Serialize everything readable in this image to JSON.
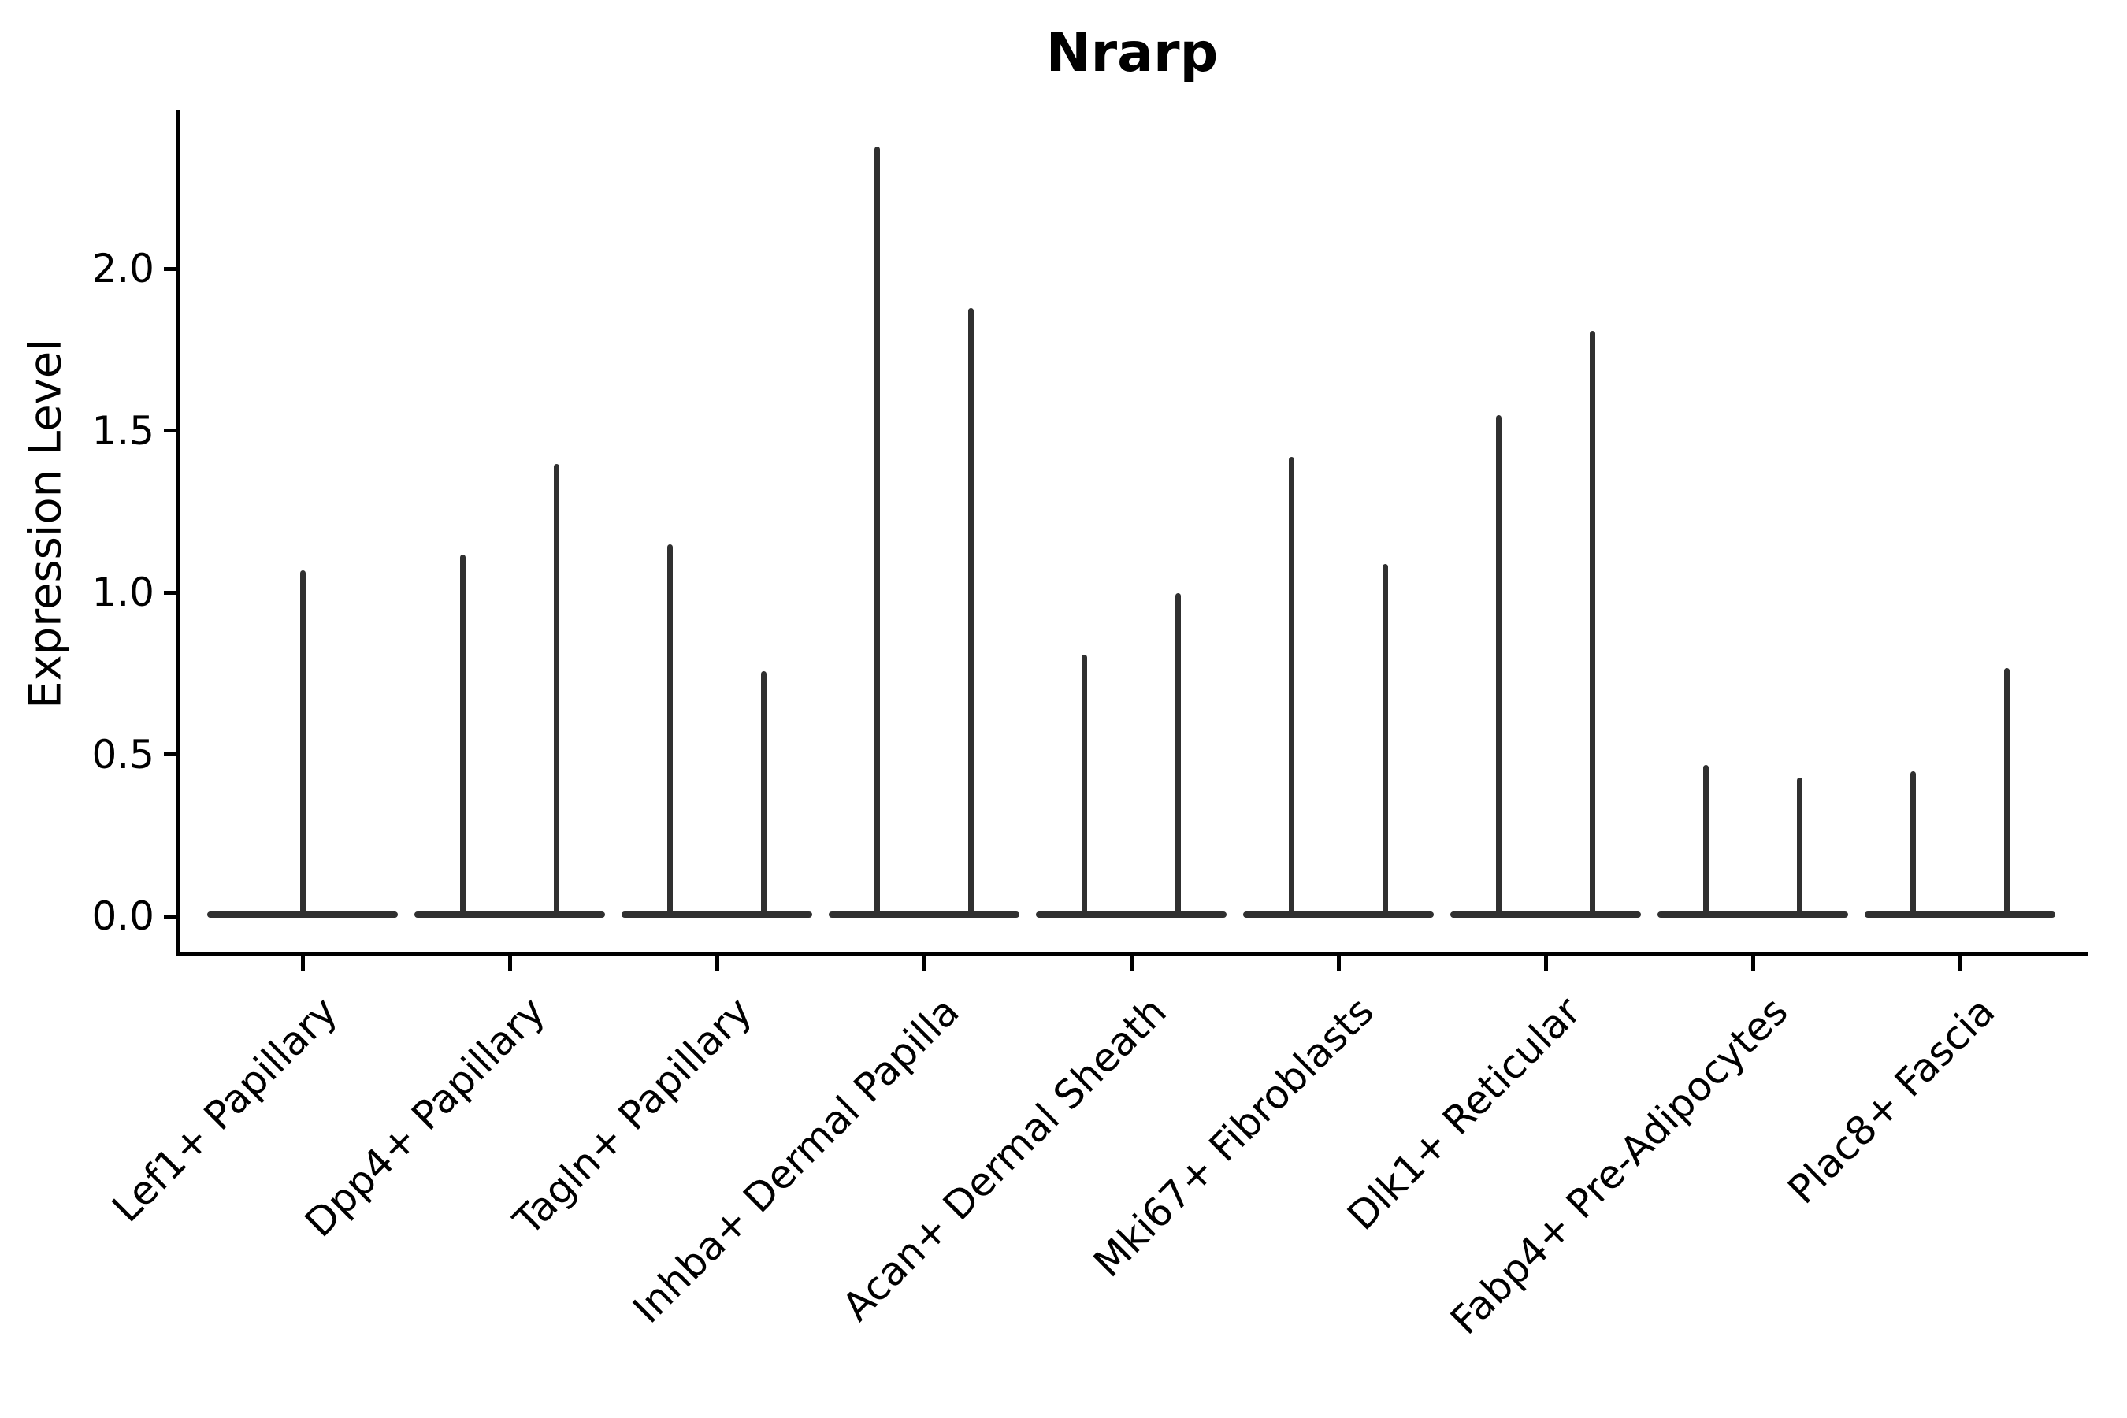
{
  "figure": {
    "title": "Nrarp",
    "background": "#ffffff"
  },
  "axes": {
    "ylabel": "Expression Level",
    "yticks": [
      {
        "label": "0.0",
        "value": 0.0
      },
      {
        "label": "0.5",
        "value": 0.5
      },
      {
        "label": "1.0",
        "value": 1.0
      },
      {
        "label": "1.5",
        "value": 1.5
      },
      {
        "label": "2.0",
        "value": 2.0
      }
    ]
  },
  "colors": {
    "violin": "#303030",
    "axis": "#000000",
    "text": "#000000"
  },
  "chart_data": {
    "type": "violin",
    "title": "Nrarp",
    "xlabel": "",
    "ylabel": "Expression Level",
    "ylim": [
      -0.12,
      2.49
    ],
    "ytick_values": [
      0.0,
      0.5,
      1.0,
      1.5,
      2.0
    ],
    "grid": false,
    "legend": "none",
    "categories": [
      "Lef1+ Papillary",
      "Dpp4+ Papillary",
      "Tagln+ Papillary",
      "Inhba+ Dermal Papilla",
      "Acan+ Dermal Sheath",
      "Mki67+ Fibroblasts",
      "Dlk1+ Reticular",
      "Fabp4+ Pre-Adipocytes",
      "Plac8+ Fascia"
    ],
    "description": "Collapsed violins: expression density concentrated at 0 (wide flat base) with a thin spike up to the max expression value; most categories contain two side-by-side violins, Lef1+ Papillary contains one centered violin",
    "violins": [
      {
        "category": "Lef1+ Papillary",
        "max_values": [
          1.06
        ]
      },
      {
        "category": "Dpp4+ Papillary",
        "max_values": [
          1.11,
          1.39
        ]
      },
      {
        "category": "Tagln+ Papillary",
        "max_values": [
          1.14,
          0.75
        ]
      },
      {
        "category": "Inhba+ Dermal Papilla",
        "max_values": [
          2.37,
          1.87
        ]
      },
      {
        "category": "Acan+ Dermal Sheath",
        "max_values": [
          0.8,
          0.99
        ]
      },
      {
        "category": "Mki67+ Fibroblasts",
        "max_values": [
          1.41,
          1.08
        ]
      },
      {
        "category": "Dlk1+ Reticular",
        "max_values": [
          1.54,
          1.8
        ]
      },
      {
        "category": "Fabp4+ Pre-Adipocytes",
        "max_values": [
          0.46,
          0.42
        ]
      },
      {
        "category": "Plac8+ Fascia",
        "max_values": [
          0.44,
          0.76
        ]
      }
    ]
  }
}
